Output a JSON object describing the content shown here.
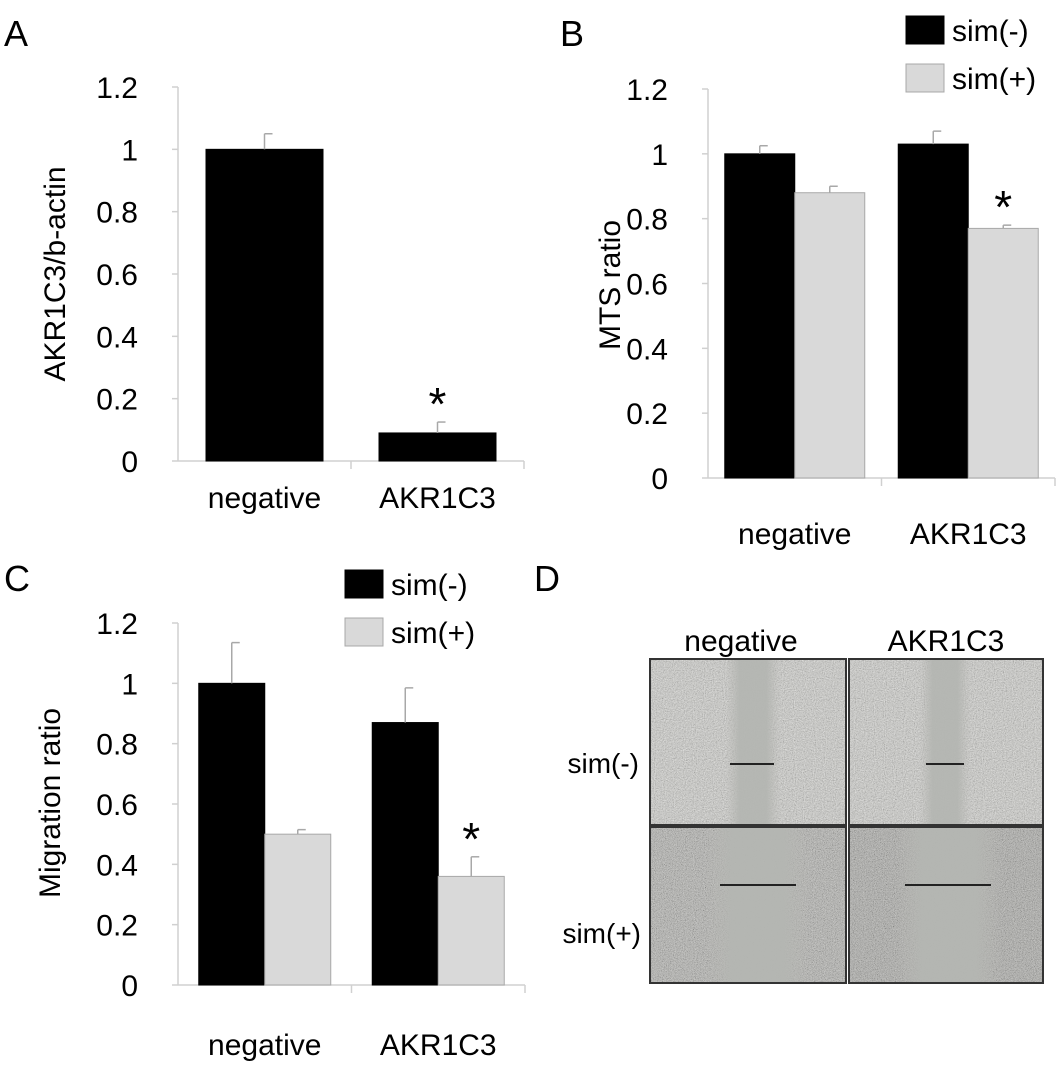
{
  "chart_data": [
    {
      "panel": "A",
      "type": "bar",
      "categories": [
        "negative",
        "AKR1C3"
      ],
      "series": [
        {
          "values": [
            1.0,
            0.09
          ],
          "errors": [
            0.05,
            0.035
          ],
          "color": "#000000"
        }
      ],
      "ylabel": "AKR1C3/b-actin",
      "ylim": [
        0,
        1.2
      ],
      "yticks": [
        "0",
        "0.2",
        "0.4",
        "0.6",
        "0.8",
        "1",
        "1.2"
      ],
      "annotations": [
        {
          "category": 1,
          "series": 0,
          "text": "*"
        }
      ],
      "grid": false
    },
    {
      "panel": "B",
      "type": "bar",
      "categories": [
        "negative",
        "AKR1C3"
      ],
      "series": [
        {
          "name": "sim(-)",
          "values": [
            1.0,
            1.03
          ],
          "errors": [
            0.025,
            0.04
          ],
          "color": "#000000"
        },
        {
          "name": "sim(+)",
          "values": [
            0.88,
            0.77
          ],
          "errors": [
            0.02,
            0.01
          ],
          "color": "#d9d9d9"
        }
      ],
      "ylabel": "MTS ratio",
      "ylim": [
        0,
        1.2
      ],
      "yticks": [
        "0",
        "0.2",
        "0.4",
        "0.6",
        "0.8",
        "1",
        "1.2"
      ],
      "legend": "top-right",
      "annotations": [
        {
          "category": 1,
          "series": 1,
          "text": "*"
        }
      ],
      "grid": false
    },
    {
      "panel": "C",
      "type": "bar",
      "categories": [
        "negative",
        "AKR1C3"
      ],
      "series": [
        {
          "name": "sim(-)",
          "values": [
            1.0,
            0.87
          ],
          "errors": [
            0.135,
            0.115
          ],
          "color": "#000000"
        },
        {
          "name": "sim(+)",
          "values": [
            0.5,
            0.36
          ],
          "errors": [
            0.015,
            0.065
          ],
          "color": "#d9d9d9"
        }
      ],
      "ylabel": "Migration ratio",
      "ylim": [
        0,
        1.2
      ],
      "yticks": [
        "0",
        "0.2",
        "0.4",
        "0.6",
        "0.8",
        "1",
        "1.2"
      ],
      "legend": "top",
      "annotations": [
        {
          "category": 1,
          "series": 1,
          "text": "*"
        }
      ],
      "grid": false
    }
  ],
  "panel_d": {
    "letter": "D",
    "columns": [
      "negative",
      "AKR1C3"
    ],
    "rows": [
      "sim(-)",
      "sim(+)"
    ]
  },
  "colors": {
    "axis": "#d0d0d0",
    "border": "#333333"
  }
}
